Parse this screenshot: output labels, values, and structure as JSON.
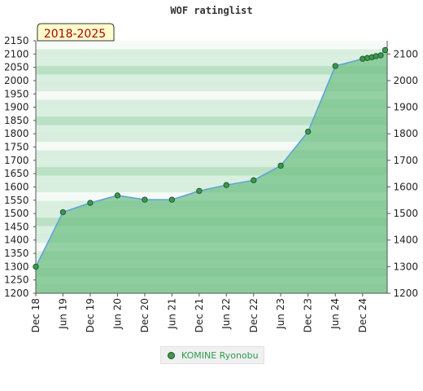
{
  "chart_data": {
    "type": "area",
    "title": "WOF ratinglist",
    "period_badge": "2018-2025",
    "x": [
      "2018-12-01",
      "2019-06-01",
      "2019-12-01",
      "2020-06-01",
      "2020-12-01",
      "2021-06-01",
      "2021-12-01",
      "2022-06-01",
      "2022-12-01",
      "2023-06-01",
      "2023-12-01",
      "2024-06-01",
      "2024-12-01",
      "2025-01-01",
      "2025-02-01",
      "2025-03-01",
      "2025-04-01",
      "2025-05-01"
    ],
    "series": [
      {
        "name": "KOMINE Ryonobu",
        "values": [
          1300,
          1505,
          1540,
          1568,
          1552,
          1552,
          1585,
          1607,
          1625,
          1680,
          1808,
          2055,
          2082,
          2085,
          2088,
          2092,
          2095,
          2115
        ]
      }
    ],
    "x_tick_labels": [
      "Dec 18",
      "Jun 19",
      "Dec 19",
      "Jun 20",
      "Dec 20",
      "Jun 21",
      "Dec 21",
      "Jun 22",
      "Dec 22",
      "Jun 23",
      "Dec 23",
      "Jun 24",
      "Dec 24"
    ],
    "y_left_ticks": [
      1200,
      1250,
      1300,
      1350,
      1400,
      1450,
      1500,
      1550,
      1600,
      1650,
      1700,
      1750,
      1800,
      1850,
      1900,
      1950,
      2000,
      2050,
      2100,
      2150
    ],
    "y_right_ticks": [
      1200,
      1300,
      1400,
      1500,
      1600,
      1700,
      1800,
      1900,
      2000,
      2100
    ],
    "ylim": [
      1200,
      2150
    ],
    "legend_position": "bottom-center",
    "colors": {
      "fill": "#7cc690",
      "line": "#5b9fe0",
      "marker": "#3a9a4e",
      "badge_bg": "#ffffcc",
      "badge_text": "#aa0000",
      "legend_text": "#2a9d4a"
    }
  },
  "legend": {
    "label": "KOMINE Ryonobu"
  }
}
